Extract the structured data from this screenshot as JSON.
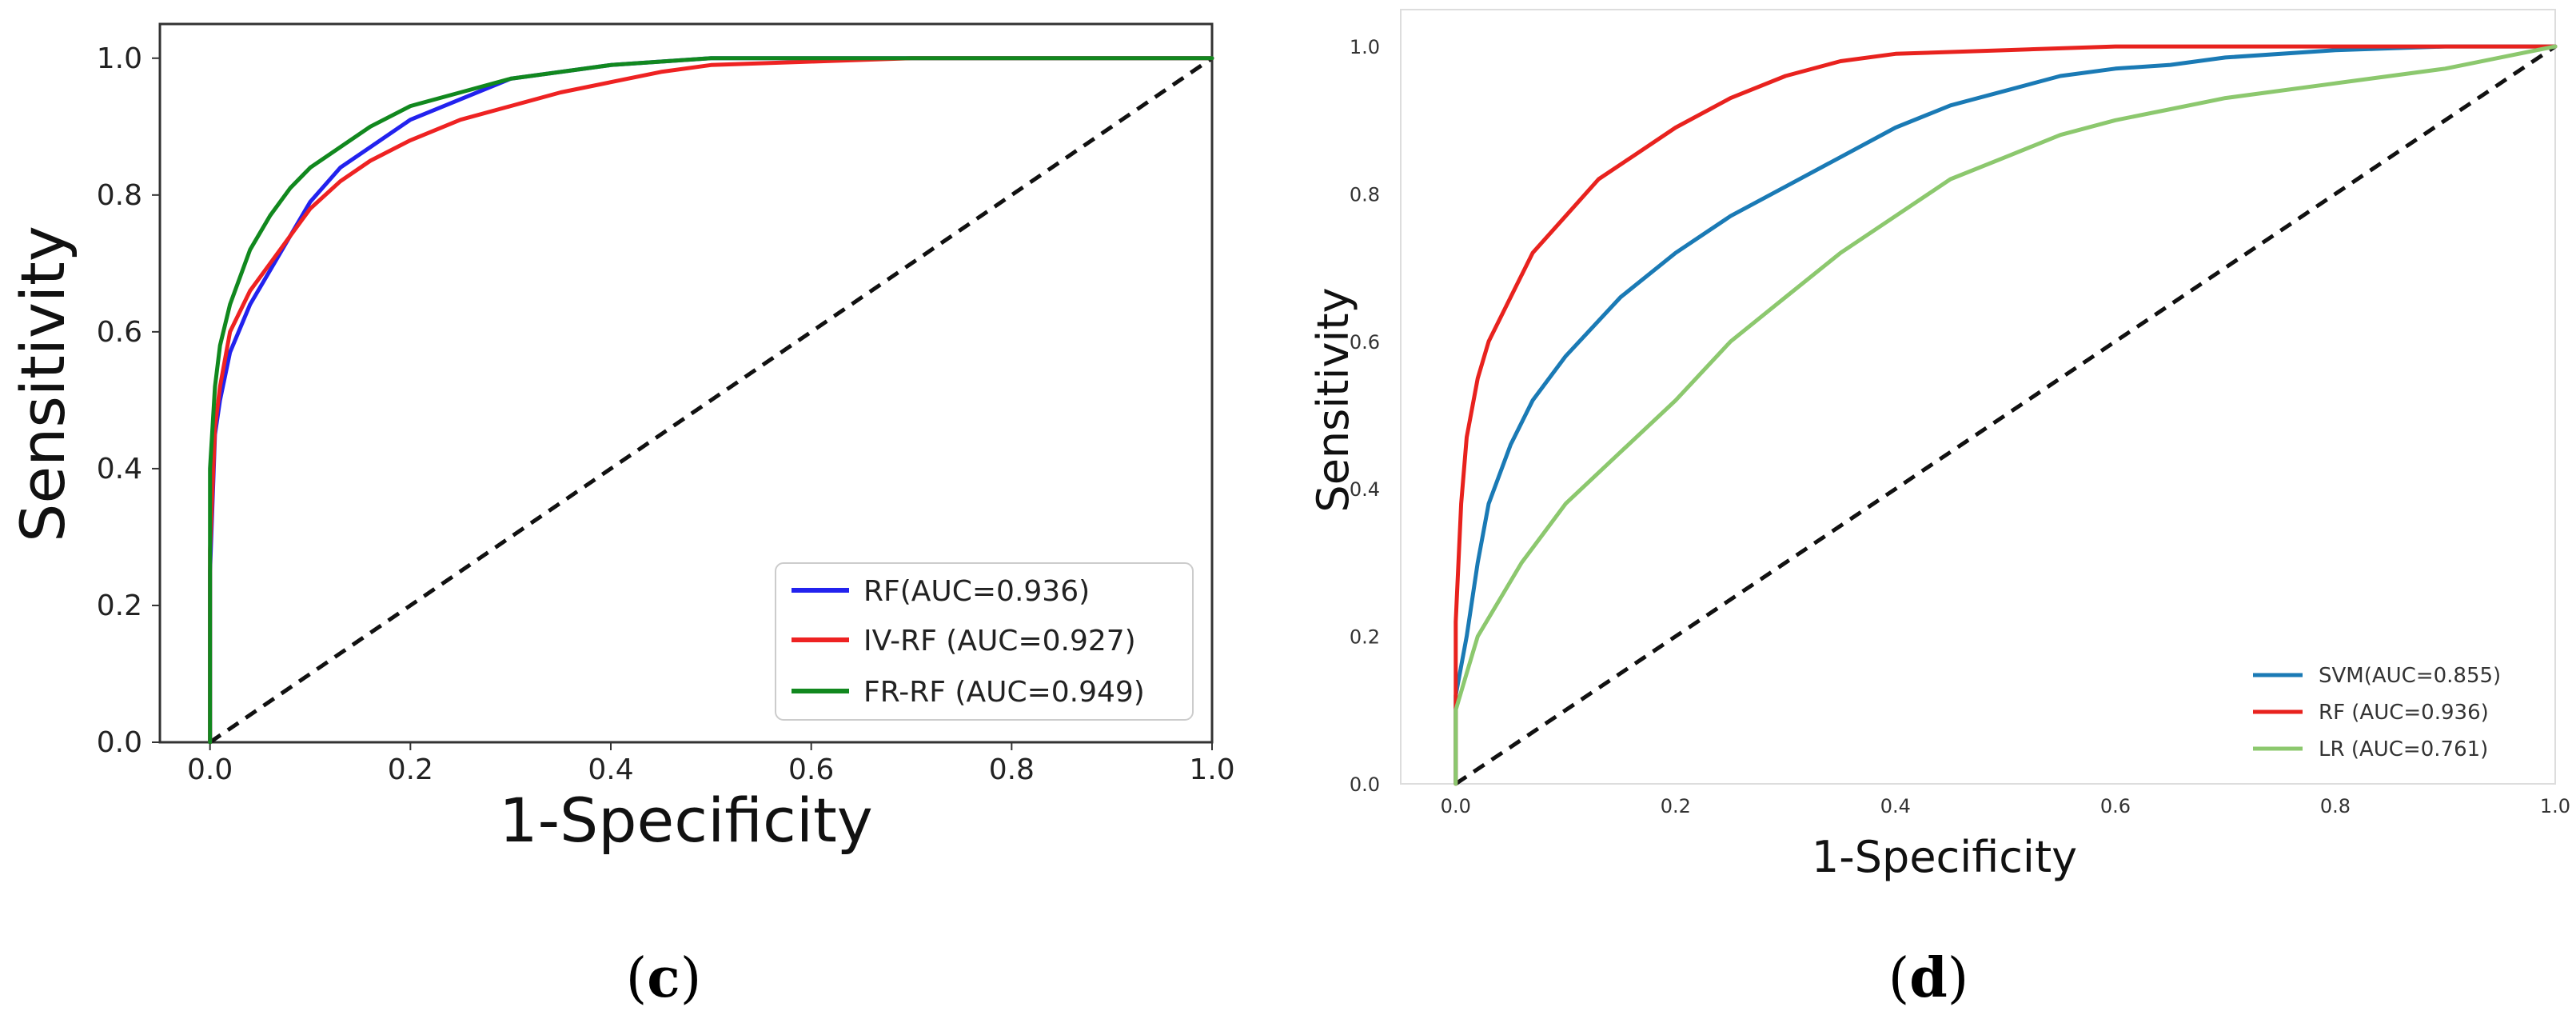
{
  "chart_data": [
    {
      "panel_label": "(c)",
      "panel_letter": "c",
      "type": "line",
      "xlabel": "1-Specificity",
      "ylabel": "Sensitivity",
      "xlim": [
        -0.05,
        1.0
      ],
      "ylim": [
        0.0,
        1.05
      ],
      "xticks": [
        0.0,
        0.2,
        0.4,
        0.6,
        0.8,
        1.0
      ],
      "xtick_labels": [
        "0.0",
        "0.2",
        "0.4",
        "0.6",
        "0.8",
        "1.0"
      ],
      "yticks": [
        0.0,
        0.2,
        0.4,
        0.6,
        0.8,
        1.0
      ],
      "ytick_labels": [
        "0.0",
        "0.2",
        "0.4",
        "0.6",
        "0.8",
        "1.0"
      ],
      "legend_position": "bottom-right",
      "diagonal": true,
      "series": [
        {
          "name": "RF(AUC=0.936)",
          "color": "#2222ee",
          "x": [
            0,
            0.0,
            0.005,
            0.01,
            0.02,
            0.04,
            0.06,
            0.08,
            0.1,
            0.13,
            0.16,
            0.2,
            0.25,
            0.3,
            0.35,
            0.4,
            0.5,
            0.6,
            0.7,
            1.0
          ],
          "y": [
            0,
            0.25,
            0.45,
            0.5,
            0.57,
            0.64,
            0.69,
            0.74,
            0.79,
            0.84,
            0.87,
            0.91,
            0.94,
            0.97,
            0.98,
            0.99,
            1.0,
            1.0,
            1.0,
            1.0
          ]
        },
        {
          "name": "IV-RF (AUC=0.927)",
          "color": "#ee2222",
          "x": [
            0,
            0.0,
            0.005,
            0.01,
            0.02,
            0.04,
            0.06,
            0.08,
            0.1,
            0.13,
            0.16,
            0.2,
            0.25,
            0.3,
            0.35,
            0.4,
            0.45,
            0.5,
            0.6,
            0.7,
            1.0
          ],
          "y": [
            0,
            0.28,
            0.46,
            0.52,
            0.6,
            0.66,
            0.7,
            0.74,
            0.78,
            0.82,
            0.85,
            0.88,
            0.91,
            0.93,
            0.95,
            0.965,
            0.98,
            0.99,
            0.995,
            1.0,
            1.0
          ]
        },
        {
          "name": "FR-RF (AUC=0.949)",
          "color": "#11881e",
          "x": [
            0,
            0.0,
            0.005,
            0.01,
            0.02,
            0.04,
            0.06,
            0.08,
            0.1,
            0.13,
            0.16,
            0.2,
            0.25,
            0.3,
            0.35,
            0.4,
            0.5,
            0.6,
            0.7,
            1.0
          ],
          "y": [
            0,
            0.4,
            0.52,
            0.58,
            0.64,
            0.72,
            0.77,
            0.81,
            0.84,
            0.87,
            0.9,
            0.93,
            0.95,
            0.97,
            0.98,
            0.99,
            1.0,
            1.0,
            1.0,
            1.0
          ]
        }
      ]
    },
    {
      "panel_label": "(d)",
      "panel_letter": "d",
      "type": "line",
      "xlabel": "1-Specificity",
      "ylabel": "Sensitivity",
      "xlim": [
        -0.05,
        1.0
      ],
      "ylim": [
        0.0,
        1.05
      ],
      "xticks": [
        0.0,
        0.2,
        0.4,
        0.6,
        0.8,
        1.0
      ],
      "xtick_labels": [
        "0.0",
        "0.2",
        "0.4",
        "0.6",
        "0.8",
        "1.0"
      ],
      "yticks": [
        0.0,
        0.2,
        0.4,
        0.6,
        0.8,
        1.0
      ],
      "ytick_labels": [
        "0.0",
        "0.2",
        "0.4",
        "0.6",
        "0.8",
        "1.0"
      ],
      "legend_position": "bottom-right",
      "diagonal": true,
      "series": [
        {
          "name": "SVM(AUC=0.855)",
          "color": "#1a7ab5",
          "x": [
            0,
            0.0,
            0.01,
            0.02,
            0.03,
            0.05,
            0.07,
            0.1,
            0.15,
            0.2,
            0.25,
            0.3,
            0.35,
            0.4,
            0.45,
            0.5,
            0.55,
            0.6,
            0.65,
            0.7,
            0.8,
            0.9,
            1.0
          ],
          "y": [
            0,
            0.12,
            0.2,
            0.3,
            0.38,
            0.46,
            0.52,
            0.58,
            0.66,
            0.72,
            0.77,
            0.81,
            0.85,
            0.89,
            0.92,
            0.94,
            0.96,
            0.97,
            0.975,
            0.985,
            0.995,
            1.0,
            1.0
          ]
        },
        {
          "name": "RF (AUC=0.936)",
          "color": "#e8221e",
          "x": [
            0,
            0.0,
            0.005,
            0.01,
            0.02,
            0.03,
            0.05,
            0.07,
            0.1,
            0.13,
            0.16,
            0.2,
            0.25,
            0.3,
            0.35,
            0.4,
            0.5,
            0.6,
            0.7,
            1.0
          ],
          "y": [
            0,
            0.22,
            0.38,
            0.47,
            0.55,
            0.6,
            0.66,
            0.72,
            0.77,
            0.82,
            0.85,
            0.89,
            0.93,
            0.96,
            0.98,
            0.99,
            0.995,
            1.0,
            1.0,
            1.0
          ]
        },
        {
          "name": "LR (AUC=0.761)",
          "color": "#8cc86e",
          "x": [
            0,
            0.0,
            0.01,
            0.02,
            0.04,
            0.06,
            0.08,
            0.1,
            0.15,
            0.2,
            0.25,
            0.3,
            0.35,
            0.4,
            0.45,
            0.5,
            0.55,
            0.6,
            0.65,
            0.7,
            0.8,
            0.9,
            0.95,
            1.0
          ],
          "y": [
            0,
            0.1,
            0.15,
            0.2,
            0.25,
            0.3,
            0.34,
            0.38,
            0.45,
            0.52,
            0.6,
            0.66,
            0.72,
            0.77,
            0.82,
            0.85,
            0.88,
            0.9,
            0.915,
            0.93,
            0.95,
            0.97,
            0.985,
            1.0
          ]
        }
      ]
    }
  ]
}
